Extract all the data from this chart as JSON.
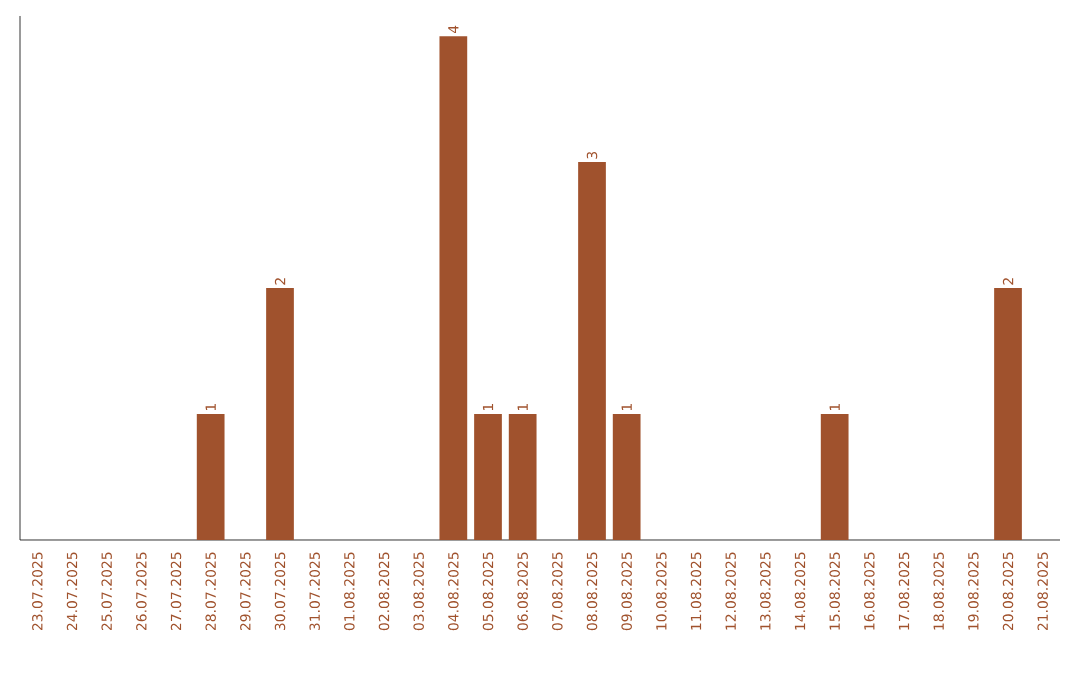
{
  "chart_data": {
    "type": "bar",
    "color": "#a0522d",
    "categories": [
      "23.07.2025",
      "24.07.2025",
      "25.07.2025",
      "26.07.2025",
      "27.07.2025",
      "28.07.2025",
      "29.07.2025",
      "30.07.2025",
      "31.07.2025",
      "01.08.2025",
      "02.08.2025",
      "03.08.2025",
      "04.08.2025",
      "05.08.2025",
      "06.08.2025",
      "07.08.2025",
      "08.08.2025",
      "09.08.2025",
      "10.08.2025",
      "11.08.2025",
      "12.08.2025",
      "13.08.2025",
      "14.08.2025",
      "15.08.2025",
      "16.08.2025",
      "17.08.2025",
      "18.08.2025",
      "19.08.2025",
      "20.08.2025",
      "21.08.2025"
    ],
    "values": [
      null,
      null,
      null,
      null,
      null,
      1,
      null,
      2,
      null,
      null,
      null,
      null,
      4,
      1,
      1,
      null,
      3,
      1,
      null,
      null,
      null,
      null,
      null,
      1,
      null,
      null,
      null,
      null,
      2,
      null
    ],
    "value_labels": [
      null,
      null,
      null,
      null,
      null,
      "1",
      null,
      "2",
      null,
      null,
      null,
      null,
      "4",
      "1",
      "1",
      null,
      "3",
      "1",
      null,
      null,
      null,
      null,
      null,
      "1",
      null,
      null,
      null,
      null,
      "2",
      null
    ],
    "relative": false
  }
}
